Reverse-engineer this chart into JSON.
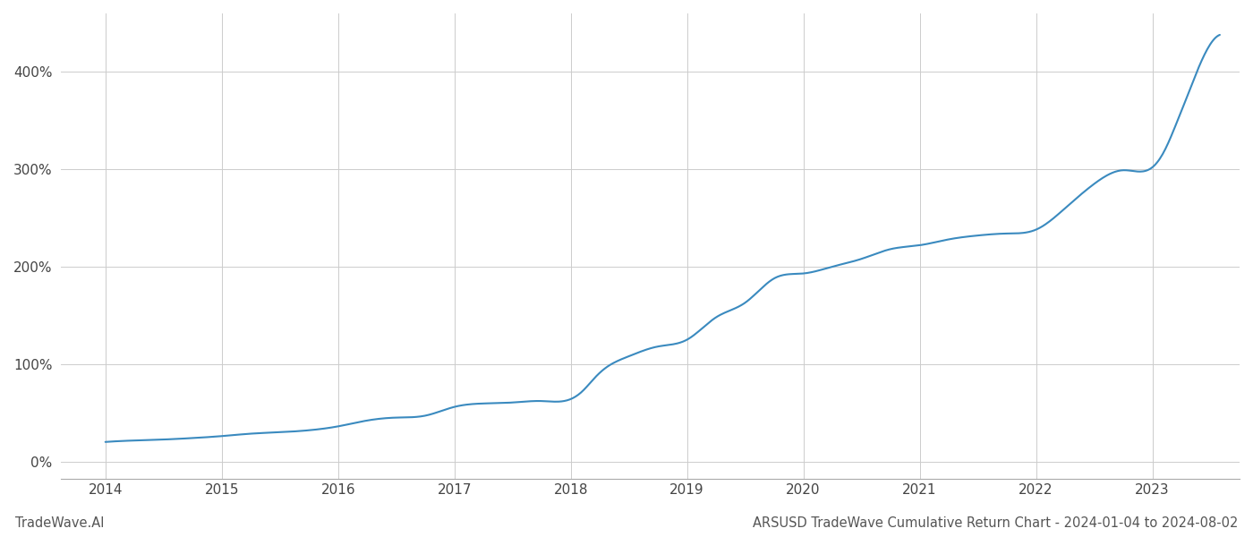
{
  "title_footer": "ARSUSD TradeWave Cumulative Return Chart - 2024-01-04 to 2024-08-02",
  "watermark": "TradeWave.AI",
  "line_color": "#3a8abf",
  "background_color": "#ffffff",
  "grid_color": "#cccccc",
  "x_years": [
    2014,
    2015,
    2016,
    2017,
    2018,
    2019,
    2020,
    2021,
    2022,
    2023
  ],
  "y_ticks": [
    0,
    100,
    200,
    300,
    400
  ],
  "xlim_start": 2013.62,
  "xlim_end": 2023.75,
  "ylim_bottom": -18,
  "ylim_top": 460,
  "data_x": [
    2014.0,
    2014.25,
    2014.5,
    2014.75,
    2015.0,
    2015.25,
    2015.5,
    2015.75,
    2016.0,
    2016.25,
    2016.5,
    2016.75,
    2017.0,
    2017.25,
    2017.5,
    2017.75,
    2018.0,
    2018.1,
    2018.2,
    2018.3,
    2018.4,
    2018.5,
    2018.75,
    2019.0,
    2019.25,
    2019.5,
    2019.75,
    2020.0,
    2020.25,
    2020.5,
    2020.75,
    2021.0,
    2021.25,
    2021.5,
    2021.75,
    2022.0,
    2022.25,
    2022.5,
    2022.75,
    2023.0,
    2023.1,
    2023.2,
    2023.3,
    2023.4,
    2023.58
  ],
  "data_y": [
    20,
    21.5,
    22.5,
    24,
    26,
    28.5,
    30,
    32,
    36,
    42,
    45,
    47,
    56,
    59.5,
    60.5,
    62,
    64,
    72,
    85,
    96,
    103,
    108,
    118,
    125,
    148,
    163,
    188,
    193,
    200,
    208,
    218,
    222,
    228,
    232,
    234,
    238,
    260,
    285,
    299,
    302,
    318,
    345,
    375,
    405,
    438
  ],
  "footnote_fontsize": 10.5,
  "tick_fontsize": 11
}
